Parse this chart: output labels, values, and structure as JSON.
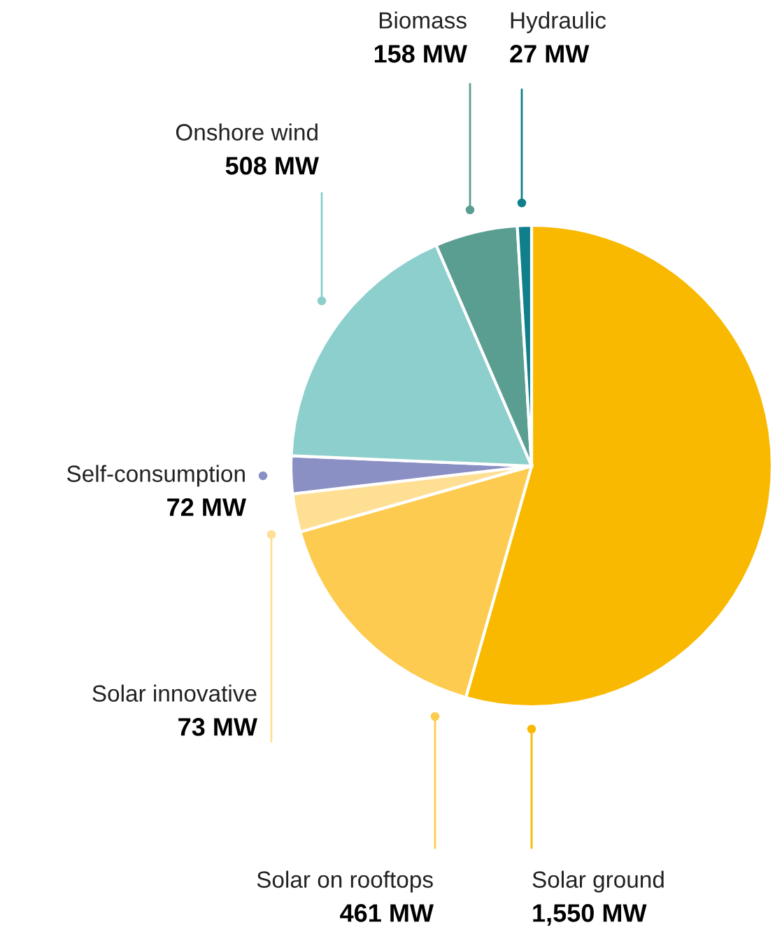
{
  "chart_data": {
    "type": "pie",
    "categories": [
      "Solar ground",
      "Solar on rooftops",
      "Solar innovative",
      "Self-consumption",
      "Onshore wind",
      "Biomass",
      "Hydraulic"
    ],
    "values": [
      1550,
      461,
      73,
      72,
      508,
      158,
      27
    ],
    "value_labels": [
      "1,550 MW",
      "461 MW",
      "73 MW",
      "72 MW",
      "508 MW",
      "158 MW",
      "27 MW"
    ],
    "colors": [
      "#f9b900",
      "#fccb4f",
      "#fedf94",
      "#8a8fc4",
      "#8ccfcc",
      "#5a9e91",
      "#0f7f8c"
    ]
  }
}
